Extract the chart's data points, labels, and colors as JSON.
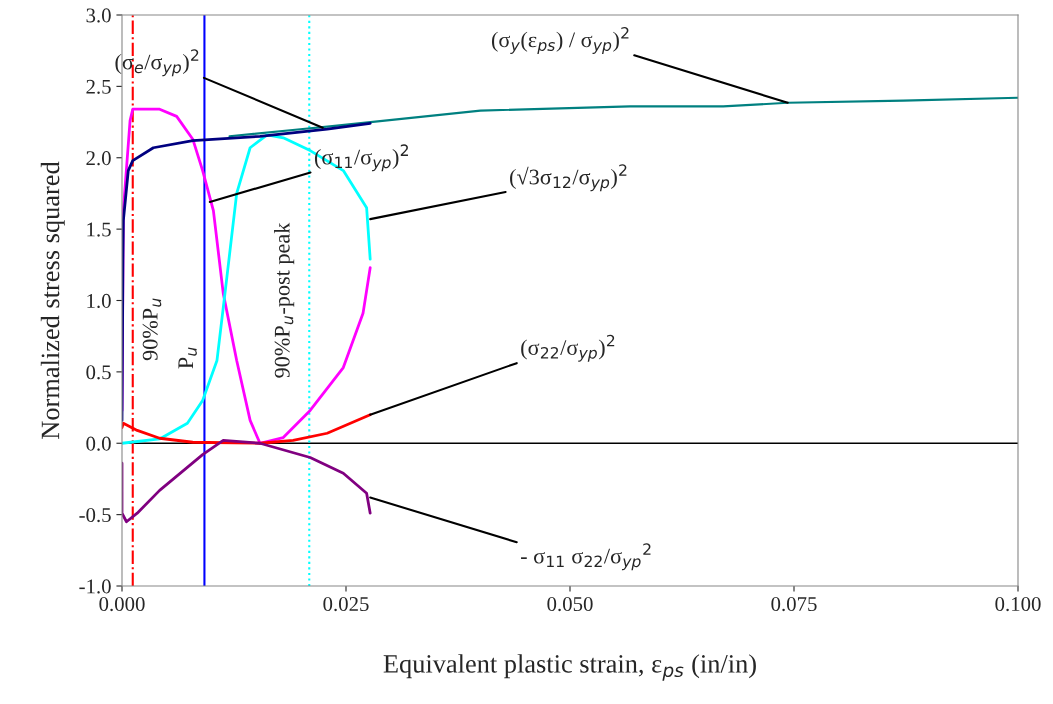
{
  "chart_data": {
    "type": "line",
    "xlabel": "Equivalent plastic strain, ε$_{ps}$ (in/in)",
    "ylabel": "Normalized stress squared",
    "xlim": [
      0,
      0.1
    ],
    "ylim": [
      -1,
      3
    ],
    "xticks": [
      {
        "value": 0,
        "label": "0.000"
      },
      {
        "value": 0.025,
        "label": "0.025"
      },
      {
        "value": 0.05,
        "label": "0.050"
      },
      {
        "value": 0.075,
        "label": "0.075"
      },
      {
        "value": 0.1,
        "label": "0.100"
      }
    ],
    "yticks": [
      {
        "value": -1,
        "label": "-1.0"
      },
      {
        "value": -0.5,
        "label": "-0.5"
      },
      {
        "value": 0,
        "label": "0.0"
      },
      {
        "value": 0.5,
        "label": "0.5"
      },
      {
        "value": 1,
        "label": "1.0"
      },
      {
        "value": 1.5,
        "label": "1.5"
      },
      {
        "value": 2,
        "label": "2.0"
      },
      {
        "value": 2.5,
        "label": "2.5"
      },
      {
        "value": 3,
        "label": "3.0"
      }
    ],
    "grid": false,
    "legend": false,
    "marker": "none",
    "series": [
      {
        "color": "#008080",
        "x": [
          0.012,
          0.0199,
          0.0232,
          0.04,
          0.0567,
          0.0671,
          0.0743,
          0.0872,
          0.1
        ],
        "values": [
          2.15,
          2.2,
          2.22,
          2.33,
          2.36,
          2.36,
          2.385,
          2.4,
          2.42
        ]
      },
      {
        "color": "#ff00ff",
        "x": [
          0,
          0.00015,
          0.0009,
          0.0012,
          0.0042,
          0.0061,
          0.0079,
          0.009,
          0.0102,
          0.0113,
          0.0128,
          0.0143,
          0.0154,
          0.018,
          0.021,
          0.0247,
          0.0269,
          0.0277
        ],
        "values": [
          0.23,
          1.63,
          2.26,
          2.34,
          2.34,
          2.29,
          2.13,
          1.91,
          1.63,
          1.05,
          0.58,
          0.16,
          0.0,
          0.04,
          0.23,
          0.53,
          0.91,
          1.23
        ]
      },
      {
        "color": "#00ffff",
        "x": [
          0,
          0.0042,
          0.0073,
          0.009,
          0.0106,
          0.0117,
          0.0128,
          0.0143,
          0.0162,
          0.018,
          0.021,
          0.0247,
          0.0273,
          0.0277
        ],
        "values": [
          0,
          0.03,
          0.14,
          0.3,
          0.58,
          1.16,
          1.75,
          2.07,
          2.16,
          2.14,
          2.05,
          1.91,
          1.65,
          1.29
        ]
      },
      {
        "color": "#000080",
        "x": [
          0,
          0.0001,
          0.00015,
          0.0007,
          0.0012,
          0.0035,
          0.0079,
          0.0154,
          0.0229,
          0.0277
        ],
        "values": [
          0.16,
          1.28,
          1.56,
          1.91,
          1.98,
          2.07,
          2.12,
          2.15,
          2.2,
          2.24
        ]
      },
      {
        "color": "#ff0000",
        "x": [
          0,
          0.00015,
          0.0017,
          0.0042,
          0.0079,
          0.0154,
          0.0191,
          0.0229,
          0.0277
        ],
        "values": [
          0.11,
          0.14,
          0.09,
          0.035,
          0.007,
          0,
          0.02,
          0.07,
          0.2
        ]
      },
      {
        "color": "#800080",
        "x": [
          0,
          0,
          0.0005,
          0.0017,
          0.0042,
          0.009,
          0.0113,
          0.0154,
          0.021,
          0.0247,
          0.0273,
          0.0277
        ],
        "values": [
          -0.14,
          -0.49,
          -0.55,
          -0.49,
          -0.33,
          -0.08,
          0.02,
          0,
          -0.1,
          -0.21,
          -0.35,
          -0.49
        ]
      }
    ],
    "ref_lines": [
      {
        "axis": "y",
        "value": 0,
        "color": "#000000",
        "line_style": "solid"
      },
      {
        "axis": "x",
        "value": 0.0012,
        "label": "90%P$_{u}$",
        "color": "#ff0000",
        "line_style": "dashdot"
      },
      {
        "axis": "x",
        "value": 0.0092,
        "label": "P$_{u}$",
        "color": "#0000ff",
        "line_style": "solid"
      },
      {
        "axis": "x",
        "value": 0.0209,
        "label": "90%P$_{u}$-post peak",
        "color": "#00ffff",
        "line_style": "dotted"
      }
    ],
    "annotations": [
      {
        "text": "(σ$_{e}$/σ$_{yp}$)$^{2}$",
        "x": 0.0224,
        "y": 2.21
      },
      {
        "text": "(σ$_{11}$/σ$_{yp}$)$^{2}$",
        "x": 0.0098,
        "y": 1.69
      },
      {
        "text": "(√3σ$_{12}$/σ$_{yp}$)$^{2}$",
        "x": 0.0277,
        "y": 1.57
      },
      {
        "text": "(σ$_{22}$/σ$_{yp}$)$^{2}$",
        "x": 0.0277,
        "y": 0.2
      },
      {
        "text": "(σ$_{y}$(ε$_{ps}$) / σ$_{yp}$)$^{2}$",
        "x": 0.0743,
        "y": 2.385
      },
      {
        "text": "- σ$_{11}$ σ$_{22}$/σ$_{yp}$$^{2}$",
        "x": 0.0277,
        "y": -0.38
      }
    ]
  }
}
